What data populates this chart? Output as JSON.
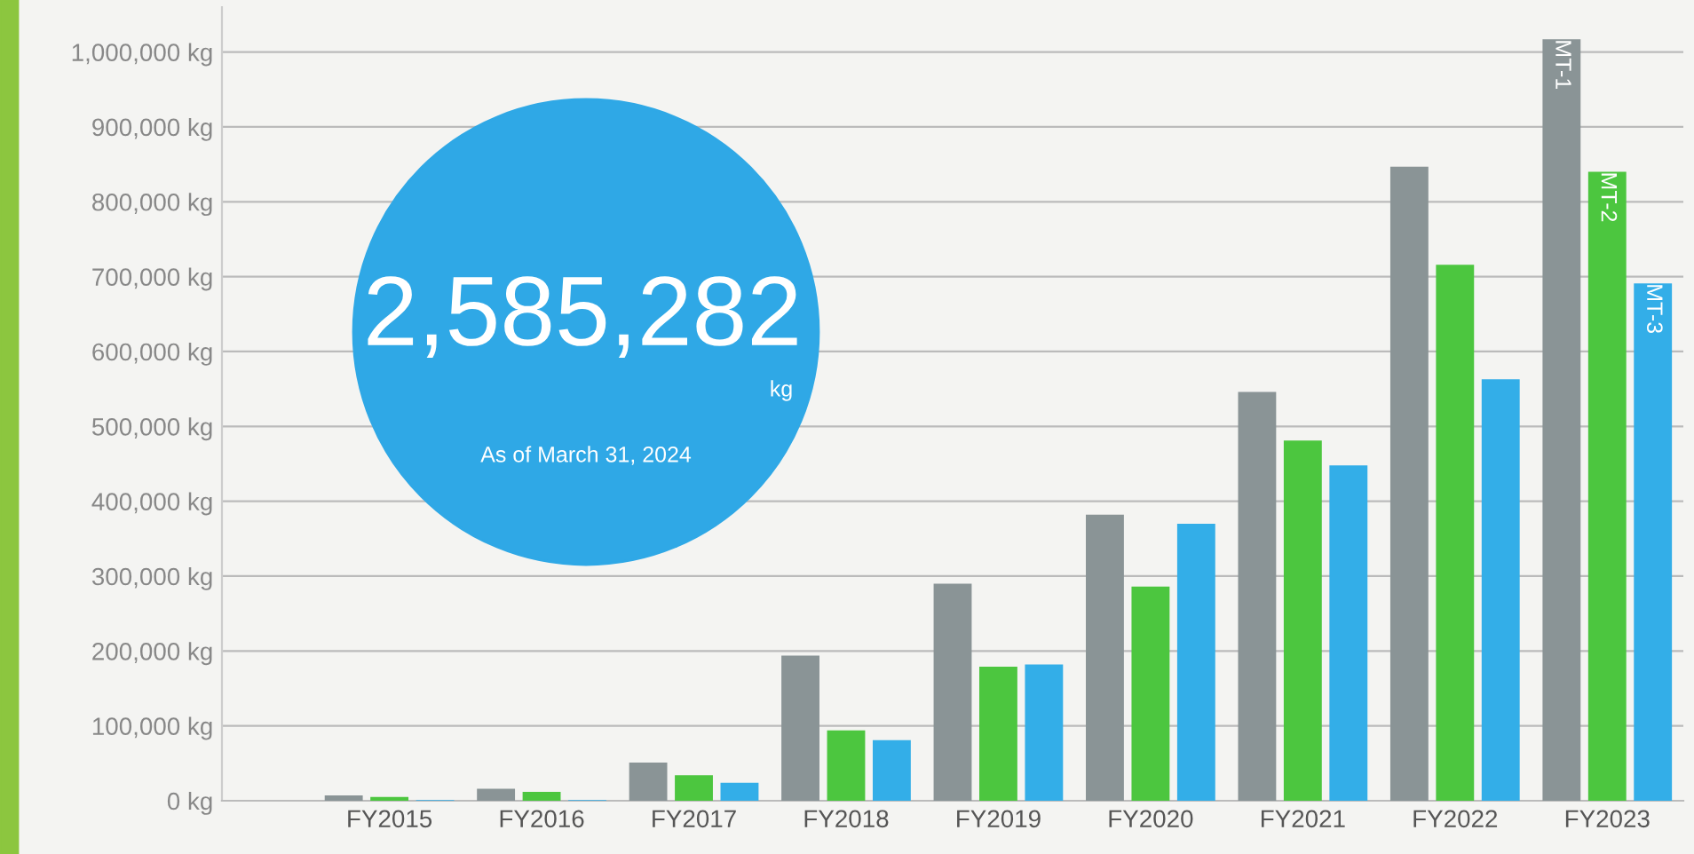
{
  "chart_data": {
    "type": "bar",
    "categories": [
      "FY2015",
      "FY2016",
      "FY2017",
      "FY2018",
      "FY2019",
      "FY2020",
      "FY2021",
      "FY2022",
      "FY2023"
    ],
    "series": [
      {
        "name": "MT-1",
        "color": "#8a9496",
        "values": [
          7000,
          16000,
          51000,
          194000,
          290000,
          382000,
          546000,
          847000,
          1017000
        ]
      },
      {
        "name": "MT-2",
        "color": "#4cc63f",
        "values": [
          5000,
          12000,
          34000,
          94000,
          179000,
          286000,
          481000,
          716000,
          840000
        ]
      },
      {
        "name": "MT-3",
        "color": "#33aee8",
        "values": [
          1000,
          1000,
          24000,
          81000,
          182000,
          370000,
          448000,
          563000,
          691000
        ]
      }
    ],
    "ylim": [
      0,
      1060000
    ],
    "yticks": [
      {
        "value": 0,
        "label": "0 kg"
      },
      {
        "value": 100000,
        "label": "100,000 kg"
      },
      {
        "value": 200000,
        "label": "200,000 kg"
      },
      {
        "value": 300000,
        "label": "300,000 kg"
      },
      {
        "value": 400000,
        "label": "400,000 kg"
      },
      {
        "value": 500000,
        "label": "500,000 kg"
      },
      {
        "value": 600000,
        "label": "600,000 kg"
      },
      {
        "value": 700000,
        "label": "700,000 kg"
      },
      {
        "value": 800000,
        "label": "800,000 kg"
      },
      {
        "value": 900000,
        "label": "900,000 kg"
      },
      {
        "value": 1000000,
        "label": "1,000,000 kg"
      }
    ],
    "grid": "y",
    "annotations": [
      "2,585,282",
      "kg",
      "As of March 31, 2024"
    ]
  }
}
